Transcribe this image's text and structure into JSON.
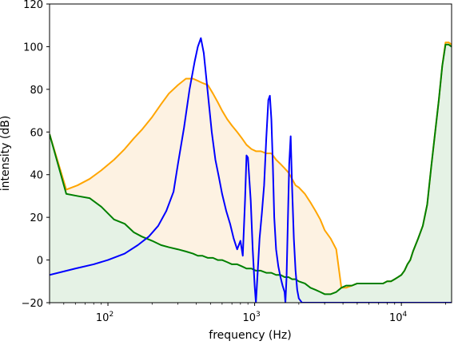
{
  "chart_data": {
    "type": "area",
    "xlabel": "frequency (Hz)",
    "ylabel": "intensity (dB)",
    "xscale": "log",
    "xlim": [
      40,
      22000
    ],
    "ylim": [
      -20,
      120
    ],
    "x_tick_labels": [
      {
        "value": 100,
        "base": "10",
        "exp": "2"
      },
      {
        "value": 1000,
        "base": "10",
        "exp": "3"
      },
      {
        "value": 10000,
        "base": "10",
        "exp": "4"
      }
    ],
    "y_ticks": [
      -20,
      0,
      20,
      40,
      60,
      80,
      100,
      120
    ],
    "grid": false,
    "legend": "none",
    "colors": {
      "orange": "#ffa500",
      "orange_fill": "#fdf2e2",
      "green": "#008000",
      "green_fill": "#e5f2e5",
      "blue": "#0000ff"
    },
    "series": [
      {
        "color": "orange",
        "filled": true,
        "x": [
          40,
          52,
          62,
          75,
          90,
          110,
          130,
          150,
          170,
          200,
          230,
          260,
          300,
          340,
          380,
          410,
          440,
          480,
          520,
          560,
          600,
          650,
          700,
          760,
          820,
          880,
          950,
          1020,
          1100,
          1200,
          1300,
          1400,
          1500,
          1600,
          1700,
          1800,
          1900,
          2000,
          2200,
          2400,
          2600,
          2800,
          3000,
          3300,
          3600,
          3900,
          4200,
          4600,
          5000,
          5500,
          6000,
          6500,
          7000,
          7500,
          8000,
          8500,
          9000,
          9500,
          10000,
          10500,
          11000,
          11500,
          12000,
          13000,
          14000,
          15000,
          16000,
          17000,
          18000,
          19000,
          20000,
          21000,
          22000
        ],
        "y": [
          59,
          33,
          35,
          38,
          42,
          47,
          52,
          57,
          61,
          67,
          73,
          78,
          82,
          85,
          85,
          84,
          83,
          82,
          78,
          74,
          70,
          66,
          63,
          60,
          57,
          54,
          52,
          51,
          51,
          50,
          50,
          47,
          45,
          43,
          41,
          38,
          35,
          34,
          31,
          27,
          23,
          19,
          14,
          10,
          5,
          -13,
          -13,
          -12,
          -11,
          -11,
          -11,
          -11,
          -11,
          -11,
          -10,
          -10,
          -9,
          -8,
          -7,
          -5,
          -2,
          0,
          4,
          10,
          16,
          26,
          44,
          60,
          75,
          91,
          102,
          102,
          101
        ]
      },
      {
        "color": "green",
        "filled": true,
        "x": [
          40,
          52,
          62,
          75,
          90,
          110,
          130,
          150,
          170,
          200,
          230,
          260,
          300,
          340,
          380,
          410,
          440,
          480,
          520,
          560,
          600,
          650,
          700,
          760,
          820,
          880,
          950,
          1020,
          1100,
          1200,
          1300,
          1400,
          1500,
          1600,
          1700,
          1800,
          1900,
          2000,
          2200,
          2400,
          2600,
          2800,
          3000,
          3300,
          3600,
          3900,
          4200,
          4600,
          5000,
          5500,
          6000,
          6500,
          7000,
          7500,
          8000,
          8500,
          9000,
          9500,
          10000,
          10500,
          11000,
          11500,
          12000,
          13000,
          14000,
          15000,
          16000,
          17000,
          18000,
          19000,
          20000,
          21000,
          22000
        ],
        "y": [
          59,
          31,
          30,
          29,
          25,
          19,
          17,
          13,
          11,
          9,
          7,
          6,
          5,
          4,
          3,
          2,
          2,
          1,
          1,
          0,
          0,
          -1,
          -2,
          -2,
          -3,
          -4,
          -4,
          -5,
          -5,
          -6,
          -6,
          -7,
          -7,
          -8,
          -8,
          -9,
          -9,
          -10,
          -11,
          -13,
          -14,
          -15,
          -16,
          -16,
          -15,
          -13,
          -12,
          -12,
          -11,
          -11,
          -11,
          -11,
          -11,
          -11,
          -10,
          -10,
          -9,
          -8,
          -7,
          -5,
          -2,
          0,
          4,
          10,
          16,
          26,
          44,
          60,
          75,
          91,
          101,
          101,
          100
        ]
      },
      {
        "color": "blue",
        "filled": false,
        "x": [
          40,
          60,
          80,
          100,
          130,
          160,
          190,
          220,
          250,
          280,
          300,
          330,
          360,
          390,
          410,
          430,
          450,
          480,
          510,
          540,
          570,
          600,
          640,
          680,
          720,
          760,
          800,
          830,
          860,
          880,
          900,
          940,
          970,
          1000,
          1020,
          1050,
          1080,
          1120,
          1160,
          1200,
          1240,
          1270,
          1300,
          1330,
          1360,
          1400,
          1450,
          1500,
          1550,
          1600,
          1620,
          1650,
          1680,
          1720,
          1760,
          1800,
          1850,
          1900,
          1950,
          2000,
          2100,
          3000,
          5000,
          10000,
          22000
        ],
        "y": [
          -7,
          -4,
          -2,
          0,
          3,
          7,
          11,
          16,
          23,
          32,
          45,
          62,
          80,
          93,
          100,
          104,
          97,
          78,
          60,
          47,
          39,
          31,
          23,
          17,
          10,
          5,
          9,
          2,
          28,
          49,
          48,
          28,
          5,
          -12,
          -20,
          -5,
          10,
          22,
          35,
          57,
          75,
          77,
          66,
          45,
          20,
          5,
          -3,
          -8,
          -12,
          -15,
          -20,
          -8,
          15,
          45,
          58,
          34,
          10,
          -5,
          -14,
          -18,
          -20,
          -20,
          -20,
          -20,
          -20
        ]
      }
    ]
  }
}
